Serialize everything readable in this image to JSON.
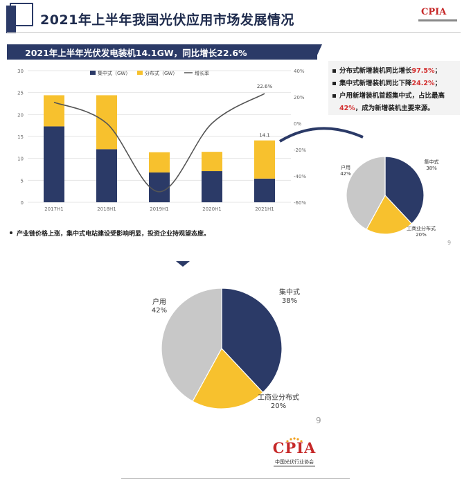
{
  "header": {
    "title": "2021年上半年我国光伏应用市场发展情况",
    "logo_text": "CPIA",
    "logo_sub": "中国光伏行业协会"
  },
  "subtitle": "2021年上半年光伏发电装机14.1GW，同比增长22.6%",
  "bullets": [
    {
      "pre": "分布式新增装机同比增长",
      "highlight": "97.5%",
      "post": "；"
    },
    {
      "pre": "集中式新增装机同比下降",
      "highlight": "24.2%",
      "post": "；"
    },
    {
      "pre": "户用新增装机首超集中式，占比最高",
      "highlight": "",
      "post": ""
    },
    {
      "pre": "",
      "highlight": "42%",
      "post": "，成为新增装机主要来源。"
    }
  ],
  "footnote": "产业链价格上涨，集中式电站建设受影响明显，投资企业持观望态度。",
  "page_number": "9",
  "chart_data": [
    {
      "type": "bar",
      "stacked": true,
      "categories": [
        "2017H1",
        "2018H1",
        "2019H1",
        "2020H1",
        "2021H1"
      ],
      "series": [
        {
          "name": "集中式（GW）",
          "color": "#2b3a67",
          "values": [
            17.3,
            12.1,
            6.8,
            7.1,
            5.4
          ]
        },
        {
          "name": "分布式（GW）",
          "color": "#f7c12e",
          "values": [
            7.1,
            12.3,
            4.6,
            4.4,
            8.7
          ]
        }
      ],
      "line_series": {
        "name": "增长率",
        "color": "#555555",
        "values": [
          16,
          0,
          -52,
          0,
          22.6
        ],
        "axis": "right"
      },
      "ylim": [
        0,
        30
      ],
      "yticks": [
        0,
        5,
        10,
        15,
        20,
        25,
        30
      ],
      "y2lim": [
        -60,
        40
      ],
      "y2ticks": [
        "40%",
        "20%",
        "0%",
        "-20%",
        "-40%",
        "-60%"
      ],
      "data_labels": [
        {
          "category": "2017H1",
          "text": ""
        },
        {
          "category": "2021H1",
          "text": "14.1"
        }
      ],
      "line_label": "22.6%",
      "legend_position": "top"
    },
    {
      "type": "pie",
      "labels": [
        "集中式",
        "工商业分布式",
        "户用"
      ],
      "values": [
        38,
        20,
        42
      ],
      "percent_labels": [
        "38%",
        "20%",
        "42%"
      ],
      "colors": [
        "#2b3a67",
        "#f7c12e",
        "#c8c8c8"
      ]
    }
  ]
}
